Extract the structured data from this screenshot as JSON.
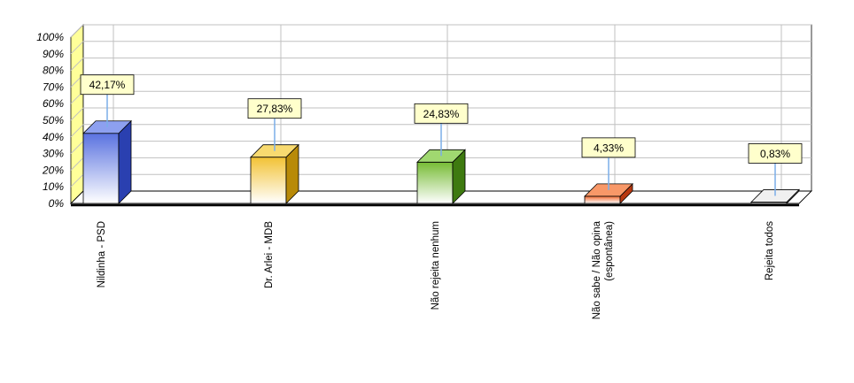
{
  "chart_data": {
    "type": "bar",
    "categories": [
      [
        "Nildinha - PSD"
      ],
      [
        "Dr. Arlei - MDB"
      ],
      [
        "Não rejeita nenhum"
      ],
      [
        "Não sabe / Não opina",
        "(espontânea)"
      ],
      [
        "Rejeita todos"
      ]
    ],
    "values": [
      42.17,
      27.83,
      24.83,
      4.33,
      0.83
    ],
    "data_labels": [
      "42,17%",
      "27,83%",
      "24,83%",
      "4,33%",
      "0,83%"
    ],
    "y_ticks": [
      "0%",
      "10%",
      "20%",
      "30%",
      "40%",
      "50%",
      "60%",
      "70%",
      "80%",
      "90%",
      "100%"
    ],
    "ylim": [
      0,
      100
    ],
    "grid": true,
    "colors": {
      "front": [
        "#5a72e0",
        "#f2c234",
        "#76bb34",
        "#f26a30",
        "#e0e0e0"
      ],
      "side": [
        "#2a40b0",
        "#b88a08",
        "#3e7a10",
        "#b83810",
        "#a8a8a8"
      ],
      "top": [
        "#8da0f0",
        "#f8da70",
        "#a0d870",
        "#f89868",
        "#f0f0f0"
      ],
      "wall": "#ffff99",
      "label_box": "#ffffcc"
    }
  }
}
